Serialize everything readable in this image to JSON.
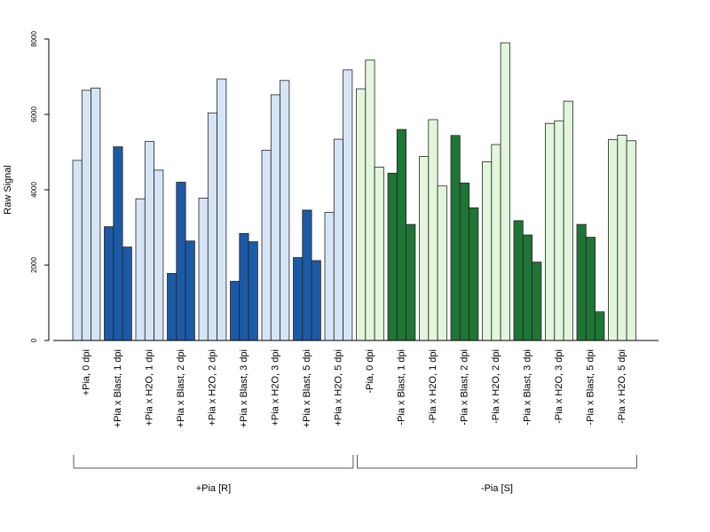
{
  "chart_data": {
    "type": "bar",
    "title": "",
    "xlabel": "",
    "ylabel": "Raw Signal",
    "ylim": [
      0,
      8000
    ],
    "yticks": [
      0,
      2000,
      4000,
      6000,
      8000
    ],
    "grid": false,
    "legend": "none",
    "categories": [
      "+Pia, 0 dpi",
      "+Pia x Blast, 1 dpi",
      "+Pia x H2O, 1 dpi",
      "+Pia x Blast, 2 dpi",
      "+Pia x H2O, 2 dpi",
      "+Pia x Blast, 3 dpi",
      "+Pia x H2O, 3 dpi",
      "+Pia x Blast, 5 dpi",
      "+Pia x H2O, 5 dpi",
      "-Pia, 0 dpi",
      "-Pia x Blast, 1 dpi",
      "-Pia x H2O, 1 dpi",
      "-Pia x Blast, 2 dpi",
      "-Pia x H2O, 2 dpi",
      "-Pia x Blast, 3 dpi",
      "-Pia x H2O, 3 dpi",
      "-Pia x Blast, 5 dpi",
      "-Pia x H2O, 5 dpi"
    ],
    "replicates": [
      [
        4780,
        6640,
        6700
      ],
      [
        3020,
        5140,
        2480
      ],
      [
        3760,
        5280,
        4520
      ],
      [
        1780,
        4200,
        2640
      ],
      [
        3780,
        6040,
        6940
      ],
      [
        1570,
        2840,
        2620
      ],
      [
        5050,
        6520,
        6900
      ],
      [
        2200,
        3460,
        2120
      ],
      [
        3400,
        5340,
        7180
      ],
      [
        6680,
        7440,
        4600
      ],
      [
        4440,
        5600,
        3080
      ],
      [
        4880,
        5860,
        4100
      ],
      [
        5440,
        4180,
        3520
      ],
      [
        4740,
        5200,
        7900
      ],
      [
        3180,
        2800,
        2080
      ],
      [
        5760,
        5830,
        6350
      ],
      [
        3080,
        2740,
        760
      ],
      [
        5330,
        5450,
        5300
      ]
    ],
    "bar_colors": [
      "#d6e5f6",
      "#1c5aa6",
      "#d6e5f6",
      "#1c5aa6",
      "#d6e5f6",
      "#1c5aa6",
      "#d6e5f6",
      "#1c5aa6",
      "#d6e5f6",
      "#e2f6dc",
      "#1f7535",
      "#e2f6dc",
      "#1f7535",
      "#e2f6dc",
      "#1f7535",
      "#e2f6dc",
      "#1f7535",
      "#e2f6dc"
    ],
    "groups": [
      {
        "label": "+Pia [R]",
        "from": 0,
        "to": 8
      },
      {
        "label": "-Pia [S]",
        "from": 9,
        "to": 17
      }
    ]
  }
}
